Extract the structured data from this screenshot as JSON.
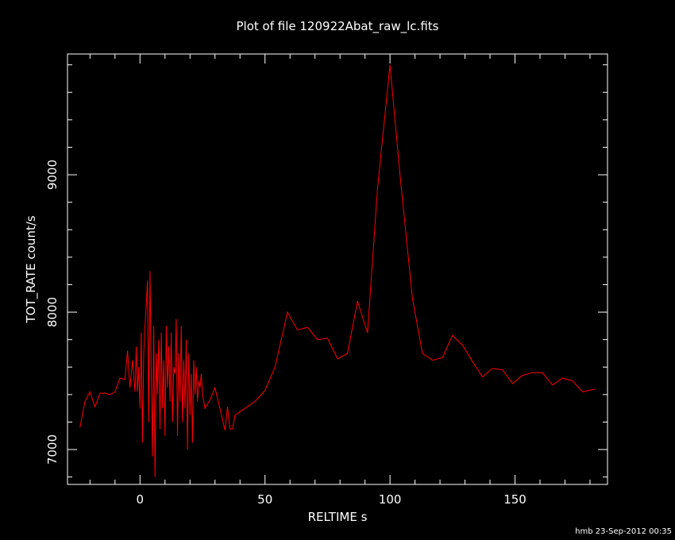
{
  "chart_data": {
    "type": "line",
    "title": "Plot of file 120922Abat_raw_lc.fits",
    "x_label": "RELTIME  s",
    "y_label": "TOT_RATE  count/s",
    "footer": "hmb 23-Sep-2012 00:35",
    "color": "#ff0000",
    "grid": false,
    "xlim": [
      -29,
      187
    ],
    "ylim": [
      6746,
      9879
    ],
    "xticks": [
      0,
      50,
      100,
      150
    ],
    "yticks": [
      7000,
      8000,
      9000
    ],
    "xminorticks": [
      -20,
      -10,
      10,
      20,
      30,
      40,
      60,
      70,
      80,
      90,
      110,
      120,
      130,
      140,
      160,
      170,
      180
    ],
    "yminorticks": [
      6800,
      7200,
      7400,
      7600,
      7800,
      8200,
      8400,
      8600,
      8800,
      9200,
      9400,
      9600,
      9800
    ],
    "x": [
      -24,
      -22,
      -20,
      -18,
      -16,
      -14,
      -12,
      -10,
      -8,
      -6,
      -5,
      -4,
      -3,
      -2,
      -1.5,
      -1,
      -0.5,
      0,
      0.5,
      1,
      1.5,
      2,
      2.5,
      3,
      3.5,
      4,
      4.5,
      5,
      5.5,
      6,
      6.5,
      7,
      7.5,
      8,
      8.5,
      9,
      9.5,
      10,
      10.5,
      11,
      11.5,
      12,
      12.5,
      13,
      13.5,
      14,
      14.5,
      15,
      15.5,
      16,
      16.5,
      17,
      17.5,
      18,
      18.5,
      19,
      19.5,
      20,
      20.5,
      21,
      21.5,
      22,
      22.5,
      23,
      23.5,
      24,
      24.5,
      25,
      26,
      28,
      30,
      32,
      34,
      35,
      36,
      37,
      38,
      42,
      46,
      50,
      54,
      59,
      63,
      67,
      71,
      75,
      79,
      83,
      87,
      91,
      95,
      100,
      104,
      109,
      113,
      117,
      121,
      125,
      129,
      133,
      137,
      141,
      145,
      149,
      153,
      157,
      161,
      165,
      169,
      173,
      177,
      182
    ],
    "values": [
      7160,
      7350,
      7420,
      7310,
      7410,
      7410,
      7400,
      7420,
      7520,
      7510,
      7720,
      7450,
      7650,
      7420,
      7750,
      7420,
      7600,
      7300,
      7850,
      7050,
      7700,
      7900,
      8050,
      8230,
      7200,
      8300,
      7550,
      6950,
      7900,
      6800,
      7700,
      7400,
      7800,
      7150,
      7850,
      7300,
      7650,
      7100,
      7900,
      7450,
      7750,
      7350,
      7850,
      7200,
      7600,
      7550,
      7950,
      7100,
      7700,
      7350,
      7900,
      7200,
      7650,
      7300,
      7800,
      7000,
      7700,
      7250,
      7550,
      7050,
      7650,
      7400,
      7600,
      7350,
      7500,
      7450,
      7550,
      7400,
      7300,
      7360,
      7450,
      7300,
      7140,
      7310,
      7150,
      7150,
      7250,
      7300,
      7350,
      7430,
      7600,
      8000,
      7870,
      7890,
      7800,
      7810,
      7660,
      7700,
      8080,
      7850,
      8900,
      9800,
      9000,
      8100,
      7700,
      7650,
      7670,
      7830,
      7760,
      7640,
      7530,
      7590,
      7580,
      7480,
      7540,
      7560,
      7560,
      7470,
      7520,
      7500,
      7420,
      7440
    ]
  }
}
